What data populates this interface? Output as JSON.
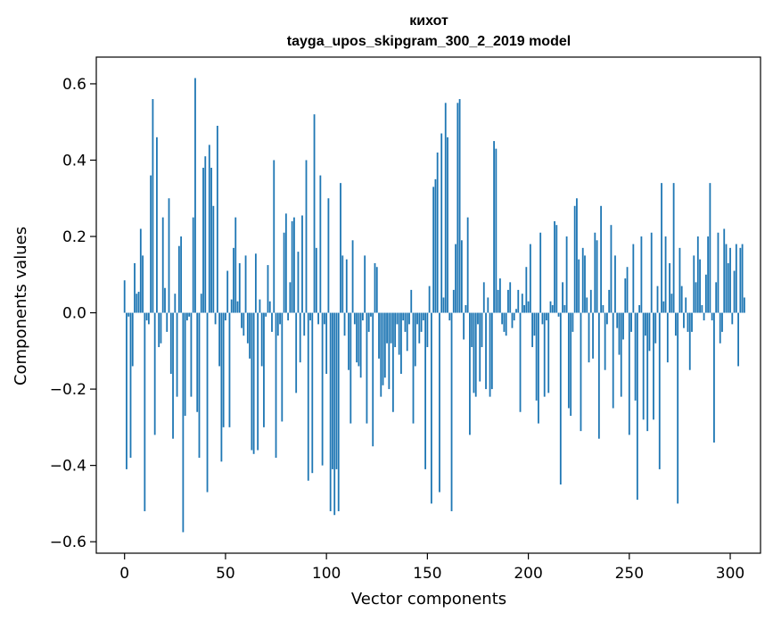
{
  "chart_data": {
    "type": "bar",
    "title": "кихот",
    "subtitle": "tayga_upos_skipgram_300_2_2019 model",
    "xlabel": "Vector components",
    "ylabel": "Components values",
    "xlim": [
      -14,
      315
    ],
    "ylim": [
      -0.63,
      0.67
    ],
    "xticks": [
      0,
      50,
      100,
      150,
      200,
      250,
      300
    ],
    "yticks": [
      -0.6,
      -0.4,
      -0.2,
      0.0,
      0.2,
      0.4,
      0.6
    ],
    "xtick_labels": [
      "0",
      "50",
      "100",
      "150",
      "200",
      "250",
      "300"
    ],
    "ytick_labels": [
      "−0.6",
      "−0.4",
      "−0.2",
      "0.0",
      "0.2",
      "0.4",
      "0.6"
    ],
    "bar_color": "#1f77b4",
    "grid": false,
    "values": [
      0.085,
      -0.41,
      -0.01,
      -0.38,
      -0.14,
      0.13,
      0.05,
      0.055,
      0.22,
      0.15,
      -0.52,
      -0.02,
      -0.03,
      0.36,
      0.56,
      -0.32,
      0.46,
      -0.09,
      -0.08,
      0.25,
      0.065,
      -0.05,
      0.3,
      -0.16,
      -0.33,
      0.05,
      -0.22,
      0.175,
      0.2,
      -0.575,
      -0.27,
      -0.02,
      -0.01,
      -0.22,
      0.25,
      0.615,
      -0.26,
      -0.38,
      0.05,
      0.38,
      0.41,
      -0.47,
      0.44,
      0.38,
      0.28,
      -0.03,
      0.49,
      -0.14,
      -0.39,
      -0.3,
      -0.02,
      0.11,
      -0.3,
      0.035,
      0.17,
      0.25,
      0.03,
      0.13,
      -0.04,
      -0.06,
      0.15,
      -0.08,
      -0.12,
      -0.36,
      -0.37,
      0.155,
      -0.36,
      0.035,
      -0.14,
      -0.3,
      -0.01,
      0.125,
      0.03,
      -0.05,
      0.4,
      -0.38,
      -0.06,
      -0.03,
      -0.285,
      0.21,
      0.26,
      -0.02,
      0.08,
      0.24,
      0.25,
      -0.21,
      0.16,
      -0.13,
      0.255,
      -0.06,
      0.4,
      -0.44,
      -0.02,
      -0.42,
      0.52,
      0.17,
      -0.03,
      0.36,
      -0.4,
      -0.03,
      -0.16,
      0.3,
      -0.52,
      -0.41,
      -0.53,
      -0.41,
      -0.52,
      0.34,
      0.15,
      -0.06,
      0.14,
      -0.15,
      -0.29,
      0.19,
      -0.03,
      -0.13,
      -0.14,
      -0.17,
      -0.02,
      0.15,
      -0.29,
      -0.05,
      -0.01,
      -0.35,
      0.13,
      0.12,
      -0.12,
      -0.22,
      -0.19,
      -0.17,
      -0.08,
      -0.2,
      -0.08,
      -0.26,
      -0.09,
      -0.03,
      -0.11,
      -0.16,
      -0.02,
      -0.05,
      -0.1,
      -0.03,
      0.06,
      -0.29,
      -0.14,
      -0.03,
      -0.08,
      -0.05,
      -0.02,
      -0.41,
      -0.09,
      0.07,
      -0.5,
      0.33,
      0.35,
      0.42,
      -0.47,
      0.47,
      0.04,
      0.55,
      0.46,
      -0.02,
      -0.52,
      0.06,
      0.18,
      0.55,
      0.56,
      0.19,
      -0.07,
      0.02,
      0.25,
      -0.32,
      -0.09,
      -0.21,
      -0.22,
      -0.03,
      -0.18,
      -0.09,
      0.08,
      -0.2,
      0.04,
      -0.22,
      -0.2,
      0.45,
      0.43,
      0.06,
      0.09,
      -0.03,
      -0.05,
      -0.06,
      0.06,
      0.08,
      -0.04,
      -0.02,
      0.01,
      0.06,
      -0.26,
      0.05,
      0.02,
      0.12,
      0.03,
      0.18,
      -0.09,
      -0.06,
      -0.23,
      -0.29,
      0.21,
      -0.03,
      -0.22,
      -0.02,
      -0.21,
      0.03,
      0.02,
      0.24,
      0.23,
      -0.01,
      -0.45,
      0.08,
      0.02,
      0.2,
      -0.25,
      -0.27,
      -0.05,
      0.28,
      0.3,
      0.14,
      -0.31,
      0.17,
      0.15,
      0.04,
      -0.13,
      0.06,
      -0.12,
      0.21,
      0.19,
      -0.33,
      0.28,
      0.02,
      -0.15,
      -0.03,
      0.06,
      0.23,
      -0.25,
      0.15,
      -0.04,
      -0.11,
      -0.22,
      -0.07,
      0.09,
      0.12,
      -0.32,
      -0.05,
      0.18,
      -0.23,
      -0.49,
      0.02,
      0.2,
      -0.28,
      -0.06,
      -0.31,
      -0.1,
      0.21,
      -0.28,
      -0.08,
      0.07,
      -0.41,
      0.34,
      0.03,
      0.2,
      -0.13,
      0.13,
      0.05,
      0.34,
      -0.06,
      -0.5,
      0.17,
      0.07,
      -0.04,
      0.04,
      -0.05,
      -0.15,
      -0.05,
      0.15,
      0.08,
      0.2,
      0.14,
      0.02,
      -0.02,
      0.1,
      0.2,
      0.34,
      -0.02,
      -0.34,
      0.08,
      0.21,
      -0.08,
      -0.05,
      0.22,
      0.18,
      0.13,
      0.17,
      -0.03,
      0.11,
      0.18,
      -0.14,
      0.17,
      0.18,
      0.04
    ]
  }
}
